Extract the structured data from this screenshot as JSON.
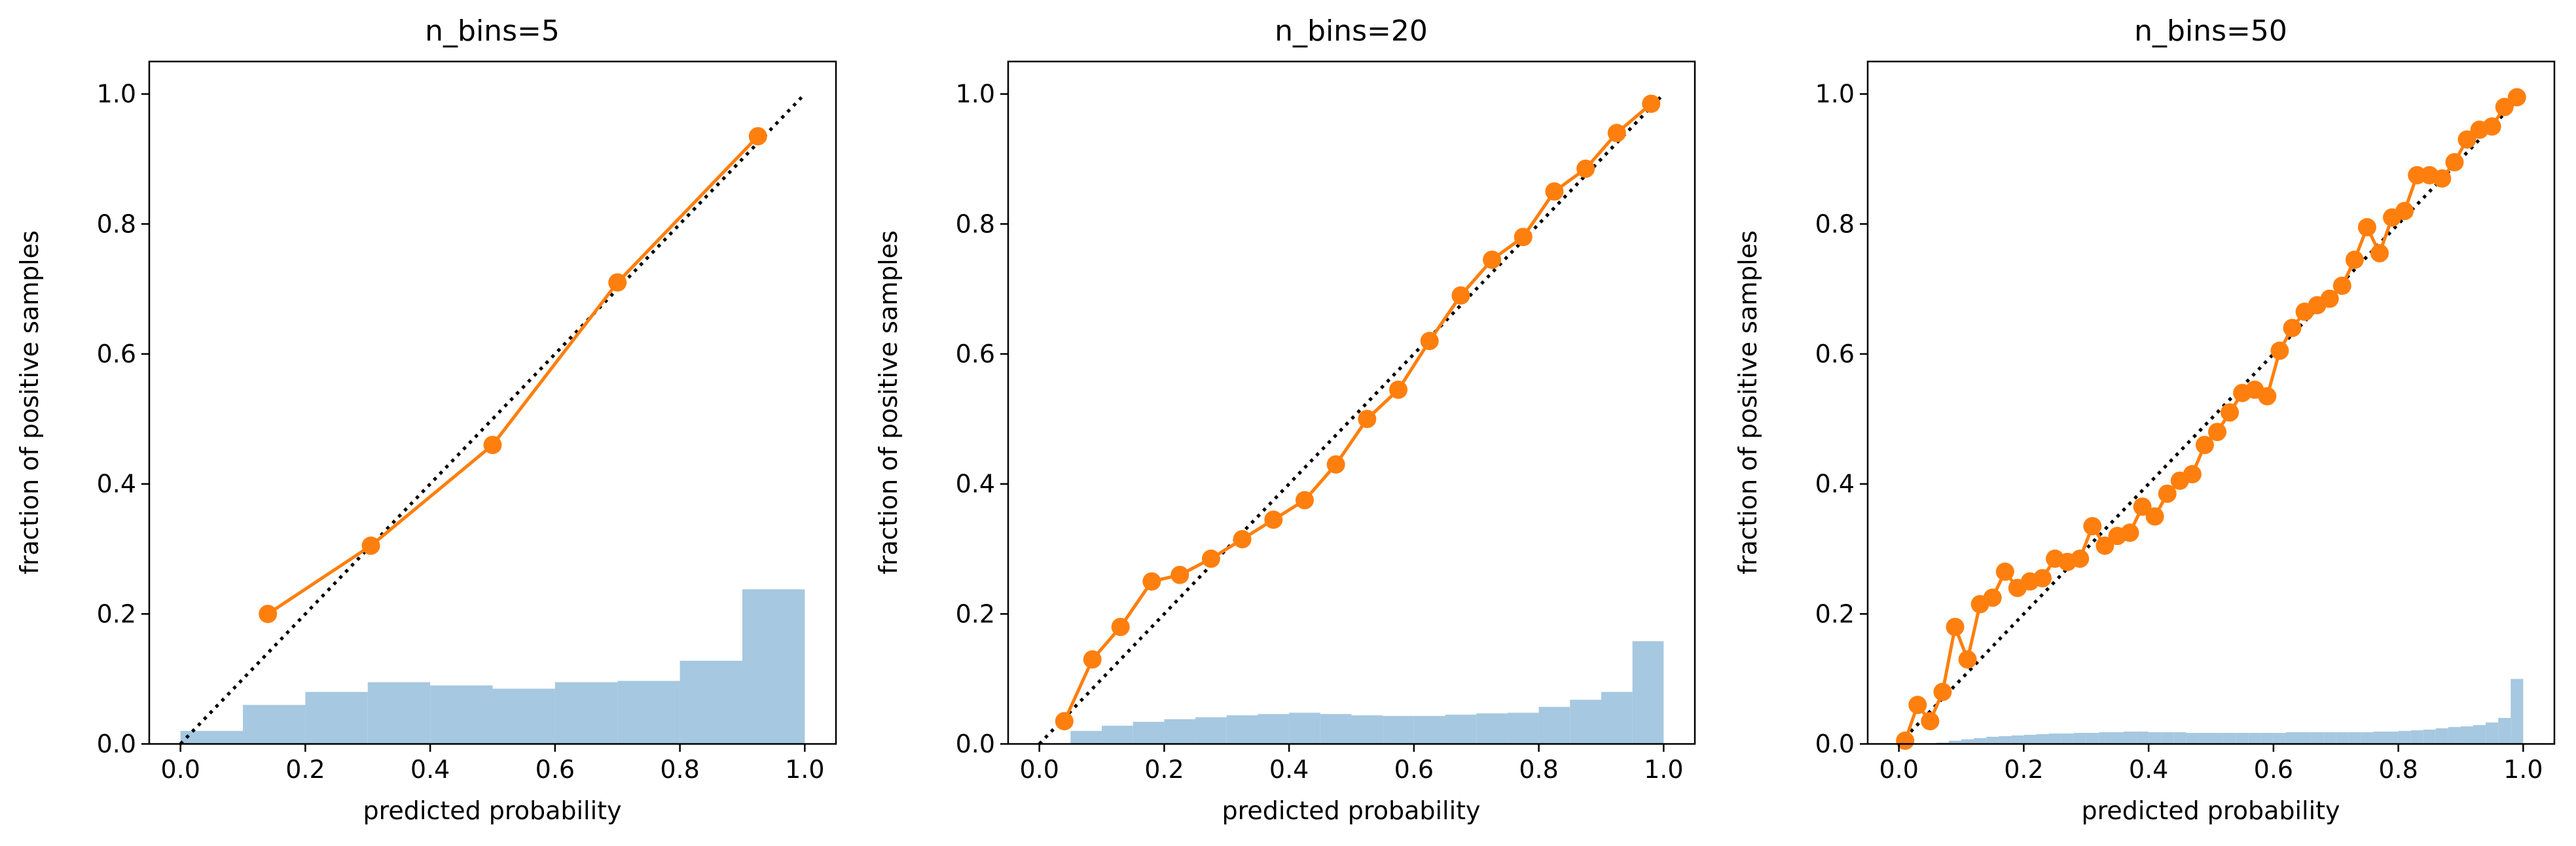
{
  "colors": {
    "curve": "#ff7f0e",
    "hist": "#a6c8e0",
    "diagonal": "#000000",
    "axes": "#000000"
  },
  "chart_data": [
    {
      "type": "line",
      "title": "n_bins=5",
      "xlabel": "predicted probability",
      "ylabel": "fraction of positive samples",
      "xlim": [
        -0.05,
        1.05
      ],
      "ylim": [
        0.0,
        1.05
      ],
      "xticks": [
        "0.0",
        "0.2",
        "0.4",
        "0.6",
        "0.8",
        "1.0"
      ],
      "yticks": [
        "0.0",
        "0.2",
        "0.4",
        "0.6",
        "0.8",
        "1.0"
      ],
      "grid": false,
      "reference_line": {
        "style": "dotted",
        "x": [
          0,
          1
        ],
        "y": [
          0,
          1
        ]
      },
      "curve": {
        "x": [
          0.14,
          0.305,
          0.5,
          0.7,
          0.925
        ],
        "y": [
          0.2,
          0.305,
          0.46,
          0.71,
          0.935
        ]
      },
      "histogram": {
        "bin_edges": [
          0.0,
          0.1,
          0.2,
          0.3,
          0.4,
          0.5,
          0.6,
          0.7,
          0.8,
          0.9,
          1.0
        ],
        "heights": [
          0.02,
          0.06,
          0.08,
          0.095,
          0.09,
          0.085,
          0.095,
          0.097,
          0.128,
          0.238
        ]
      }
    },
    {
      "type": "line",
      "title": "n_bins=20",
      "xlabel": "predicted probability",
      "ylabel": "fraction of positive samples",
      "xlim": [
        -0.05,
        1.05
      ],
      "ylim": [
        0.0,
        1.05
      ],
      "xticks": [
        "0.0",
        "0.2",
        "0.4",
        "0.6",
        "0.8",
        "1.0"
      ],
      "yticks": [
        "0.0",
        "0.2",
        "0.4",
        "0.6",
        "0.8",
        "1.0"
      ],
      "grid": false,
      "reference_line": {
        "style": "dotted",
        "x": [
          0,
          1
        ],
        "y": [
          0,
          1
        ]
      },
      "curve": {
        "x": [
          0.04,
          0.085,
          0.13,
          0.18,
          0.225,
          0.275,
          0.325,
          0.375,
          0.425,
          0.475,
          0.525,
          0.575,
          0.625,
          0.675,
          0.725,
          0.775,
          0.825,
          0.875,
          0.925,
          0.98
        ],
        "y": [
          0.035,
          0.13,
          0.18,
          0.25,
          0.26,
          0.285,
          0.315,
          0.345,
          0.375,
          0.43,
          0.5,
          0.545,
          0.62,
          0.69,
          0.745,
          0.78,
          0.85,
          0.885,
          0.94,
          0.985
        ]
      },
      "histogram": {
        "bin_edges": [
          0.0,
          0.05,
          0.1,
          0.15,
          0.2,
          0.25,
          0.3,
          0.35,
          0.4,
          0.45,
          0.5,
          0.55,
          0.6,
          0.65,
          0.7,
          0.75,
          0.8,
          0.85,
          0.9,
          0.95,
          1.0
        ],
        "heights": [
          0.0,
          0.02,
          0.028,
          0.034,
          0.038,
          0.041,
          0.044,
          0.046,
          0.048,
          0.046,
          0.044,
          0.043,
          0.043,
          0.045,
          0.047,
          0.048,
          0.057,
          0.068,
          0.08,
          0.158
        ]
      }
    },
    {
      "type": "line",
      "title": "n_bins=50",
      "xlabel": "predicted probability",
      "ylabel": "fraction of positive samples",
      "xlim": [
        -0.05,
        1.05
      ],
      "ylim": [
        0.0,
        1.05
      ],
      "xticks": [
        "0.0",
        "0.2",
        "0.4",
        "0.6",
        "0.8",
        "1.0"
      ],
      "yticks": [
        "0.0",
        "0.2",
        "0.4",
        "0.6",
        "0.8",
        "1.0"
      ],
      "grid": false,
      "reference_line": {
        "style": "dotted",
        "x": [
          0,
          1
        ],
        "y": [
          0,
          1
        ]
      },
      "curve": {
        "x": [
          0.01,
          0.03,
          0.05,
          0.07,
          0.09,
          0.11,
          0.13,
          0.15,
          0.17,
          0.19,
          0.21,
          0.23,
          0.25,
          0.27,
          0.29,
          0.31,
          0.33,
          0.35,
          0.37,
          0.39,
          0.41,
          0.43,
          0.45,
          0.47,
          0.49,
          0.51,
          0.53,
          0.55,
          0.57,
          0.59,
          0.61,
          0.63,
          0.65,
          0.67,
          0.69,
          0.71,
          0.73,
          0.75,
          0.77,
          0.79,
          0.81,
          0.83,
          0.85,
          0.87,
          0.89,
          0.91,
          0.93,
          0.95,
          0.97,
          0.99
        ],
        "y": [
          0.005,
          0.06,
          0.035,
          0.08,
          0.18,
          0.13,
          0.215,
          0.225,
          0.265,
          0.24,
          0.25,
          0.255,
          0.285,
          0.28,
          0.285,
          0.335,
          0.305,
          0.32,
          0.325,
          0.365,
          0.35,
          0.385,
          0.405,
          0.415,
          0.46,
          0.48,
          0.51,
          0.54,
          0.545,
          0.535,
          0.605,
          0.64,
          0.665,
          0.675,
          0.685,
          0.705,
          0.745,
          0.795,
          0.755,
          0.81,
          0.82,
          0.875,
          0.875,
          0.87,
          0.895,
          0.93,
          0.945,
          0.95,
          0.98,
          0.995
        ]
      },
      "histogram": {
        "bin_edges": [
          0.0,
          0.02,
          0.04,
          0.06,
          0.08,
          0.1,
          0.12,
          0.14,
          0.16,
          0.18,
          0.2,
          0.22,
          0.24,
          0.26,
          0.28,
          0.3,
          0.32,
          0.34,
          0.36,
          0.38,
          0.4,
          0.42,
          0.44,
          0.46,
          0.48,
          0.5,
          0.52,
          0.54,
          0.56,
          0.58,
          0.6,
          0.62,
          0.64,
          0.66,
          0.68,
          0.7,
          0.72,
          0.74,
          0.76,
          0.78,
          0.8,
          0.82,
          0.84,
          0.86,
          0.88,
          0.9,
          0.92,
          0.94,
          0.96,
          0.98,
          1.0
        ],
        "heights": [
          0.0,
          0.0,
          0.0,
          0.002,
          0.005,
          0.007,
          0.009,
          0.011,
          0.012,
          0.013,
          0.014,
          0.015,
          0.016,
          0.016,
          0.017,
          0.017,
          0.018,
          0.018,
          0.019,
          0.019,
          0.018,
          0.018,
          0.018,
          0.017,
          0.017,
          0.017,
          0.017,
          0.017,
          0.017,
          0.017,
          0.017,
          0.018,
          0.018,
          0.018,
          0.018,
          0.018,
          0.018,
          0.018,
          0.019,
          0.019,
          0.02,
          0.021,
          0.022,
          0.024,
          0.026,
          0.027,
          0.029,
          0.033,
          0.04,
          0.1
        ]
      }
    }
  ]
}
